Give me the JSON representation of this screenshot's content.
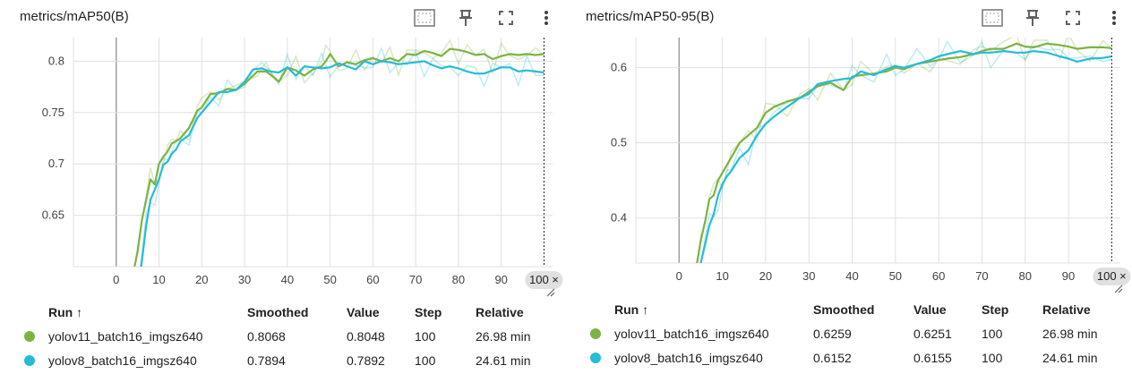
{
  "cards": [
    {
      "title": "metrics/mAP50(B)",
      "table": {
        "headers": [
          "Run ↑",
          "Smoothed",
          "Value",
          "Step",
          "Relative"
        ],
        "rows": [
          {
            "run": "yolov11_batch16_imgsz640",
            "smoothed": "0.8068",
            "value": "0.8048",
            "step": "100",
            "relative": "26.98 min",
            "color": "#7cb342"
          },
          {
            "run": "yolov8_batch16_imgsz640",
            "smoothed": "0.7894",
            "value": "0.7892",
            "step": "100",
            "relative": "24.61 min",
            "color": "#26bcd7"
          }
        ]
      }
    },
    {
      "title": "metrics/mAP50-95(B)",
      "table": {
        "headers": [
          "Run ↑",
          "Smoothed",
          "Value",
          "Step",
          "Relative"
        ],
        "rows": [
          {
            "run": "yolov11_batch16_imgsz640",
            "smoothed": "0.6259",
            "value": "0.6251",
            "step": "100",
            "relative": "26.98 min",
            "color": "#7cb342"
          },
          {
            "run": "yolov8_batch16_imgsz640",
            "smoothed": "0.6152",
            "value": "0.6155",
            "step": "100",
            "relative": "24.61 min",
            "color": "#26bcd7"
          }
        ]
      }
    }
  ],
  "icons": [
    "fit-domain-icon",
    "pin-icon",
    "fullscreen-icon",
    "more-vert-icon"
  ],
  "chart_data": [
    {
      "type": "line",
      "title": "metrics/mAP50(B)",
      "xlim": [
        -10,
        102
      ],
      "ylim": [
        0.6,
        0.823
      ],
      "x_ticks": [
        0,
        10,
        20,
        30,
        40,
        50,
        60,
        70,
        80,
        90
      ],
      "x_tick_labels": [
        "0",
        "10",
        "20",
        "30",
        "40",
        "50",
        "60",
        "70",
        "80",
        "90"
      ],
      "y_ticks": [
        0.65,
        0.7,
        0.75,
        0.8
      ],
      "y_tick_labels": [
        "0.65",
        "0.7",
        "0.75",
        "0.8"
      ],
      "cursor_step": 100,
      "cursor_label": "100 ×",
      "series": [
        {
          "name": "yolov11_batch16_imgsz640",
          "color": "#7cb342",
          "x": [
            4,
            5,
            6,
            7,
            8,
            9,
            10,
            11,
            12,
            13,
            14,
            15,
            17,
            19,
            20,
            22,
            24,
            26,
            28,
            30,
            33,
            35,
            37,
            38,
            40,
            42,
            44,
            46,
            48,
            49,
            50,
            52,
            54,
            56,
            58,
            60,
            62,
            64,
            66,
            68,
            70,
            72,
            74,
            76,
            78,
            80,
            82,
            84,
            86,
            88,
            90,
            92,
            94,
            96,
            98,
            100
          ],
          "y": [
            0.594,
            0.615,
            0.645,
            0.665,
            0.685,
            0.68,
            0.7,
            0.707,
            0.712,
            0.72,
            0.722,
            0.725,
            0.735,
            0.752,
            0.755,
            0.768,
            0.769,
            0.773,
            0.772,
            0.778,
            0.79,
            0.79,
            0.784,
            0.78,
            0.794,
            0.791,
            0.786,
            0.792,
            0.795,
            0.8,
            0.807,
            0.795,
            0.799,
            0.797,
            0.801,
            0.803,
            0.8,
            0.803,
            0.8,
            0.807,
            0.806,
            0.81,
            0.808,
            0.805,
            0.812,
            0.811,
            0.809,
            0.806,
            0.807,
            0.802,
            0.805,
            0.807,
            0.806,
            0.807,
            0.806,
            0.807
          ]
        },
        {
          "name": "yolov8_batch16_imgsz640",
          "color": "#26bcd7",
          "x": [
            5,
            6,
            7,
            8,
            9,
            10,
            11,
            12,
            13,
            14,
            15,
            17,
            19,
            20,
            22,
            24,
            26,
            28,
            30,
            32,
            34,
            36,
            38,
            40,
            42,
            44,
            46,
            48,
            50,
            52,
            54,
            56,
            58,
            60,
            62,
            64,
            66,
            68,
            70,
            72,
            74,
            76,
            78,
            80,
            82,
            84,
            86,
            88,
            90,
            92,
            94,
            96,
            98,
            100
          ],
          "y": [
            0.58,
            0.605,
            0.64,
            0.665,
            0.675,
            0.685,
            0.699,
            0.702,
            0.71,
            0.714,
            0.722,
            0.728,
            0.745,
            0.75,
            0.76,
            0.77,
            0.77,
            0.772,
            0.78,
            0.792,
            0.793,
            0.79,
            0.789,
            0.794,
            0.786,
            0.795,
            0.794,
            0.793,
            0.794,
            0.798,
            0.795,
            0.792,
            0.8,
            0.797,
            0.8,
            0.799,
            0.797,
            0.798,
            0.799,
            0.8,
            0.796,
            0.793,
            0.795,
            0.793,
            0.79,
            0.788,
            0.788,
            0.791,
            0.794,
            0.794,
            0.79,
            0.791,
            0.79,
            0.789
          ]
        }
      ]
    },
    {
      "type": "line",
      "title": "metrics/mAP50-95(B)",
      "xlim": [
        -10,
        102
      ],
      "ylim": [
        0.34,
        0.64
      ],
      "x_ticks": [
        0,
        10,
        20,
        30,
        40,
        50,
        60,
        70,
        80,
        90
      ],
      "x_tick_labels": [
        "0",
        "10",
        "20",
        "30",
        "40",
        "50",
        "60",
        "70",
        "80",
        "90"
      ],
      "y_ticks": [
        0.4,
        0.5,
        0.6
      ],
      "y_tick_labels": [
        "0.4",
        "0.5",
        "0.6"
      ],
      "cursor_step": 100,
      "cursor_label": "100 ×",
      "series": [
        {
          "name": "yolov11_batch16_imgsz640",
          "color": "#7cb342",
          "x": [
            4,
            5,
            6,
            7,
            8,
            9,
            10,
            11,
            12,
            14,
            16,
            18,
            20,
            22,
            25,
            28,
            30,
            32,
            35,
            38,
            40,
            42,
            45,
            48,
            50,
            52,
            55,
            58,
            60,
            62,
            65,
            68,
            70,
            72,
            75,
            78,
            80,
            82,
            85,
            88,
            90,
            92,
            95,
            98,
            100
          ],
          "y": [
            0.335,
            0.37,
            0.395,
            0.425,
            0.43,
            0.45,
            0.46,
            0.47,
            0.48,
            0.5,
            0.51,
            0.52,
            0.54,
            0.548,
            0.555,
            0.56,
            0.568,
            0.575,
            0.58,
            0.57,
            0.588,
            0.59,
            0.592,
            0.595,
            0.6,
            0.598,
            0.605,
            0.608,
            0.61,
            0.612,
            0.614,
            0.618,
            0.622,
            0.625,
            0.625,
            0.632,
            0.628,
            0.627,
            0.632,
            0.63,
            0.628,
            0.625,
            0.627,
            0.627,
            0.626
          ]
        },
        {
          "name": "yolov8_batch16_imgsz640",
          "color": "#26bcd7",
          "x": [
            5,
            6,
            7,
            8,
            9,
            10,
            11,
            12,
            14,
            16,
            18,
            20,
            22,
            25,
            28,
            30,
            32,
            35,
            38,
            40,
            42,
            45,
            48,
            50,
            52,
            55,
            58,
            60,
            62,
            65,
            68,
            70,
            72,
            75,
            78,
            80,
            82,
            85,
            88,
            90,
            92,
            95,
            98,
            100
          ],
          "y": [
            0.34,
            0.365,
            0.39,
            0.405,
            0.43,
            0.445,
            0.455,
            0.462,
            0.48,
            0.49,
            0.51,
            0.525,
            0.535,
            0.548,
            0.56,
            0.565,
            0.578,
            0.582,
            0.585,
            0.586,
            0.595,
            0.59,
            0.598,
            0.602,
            0.6,
            0.605,
            0.61,
            0.615,
            0.618,
            0.622,
            0.618,
            0.62,
            0.62,
            0.622,
            0.62,
            0.62,
            0.622,
            0.62,
            0.615,
            0.612,
            0.608,
            0.612,
            0.613,
            0.615
          ]
        }
      ]
    }
  ]
}
